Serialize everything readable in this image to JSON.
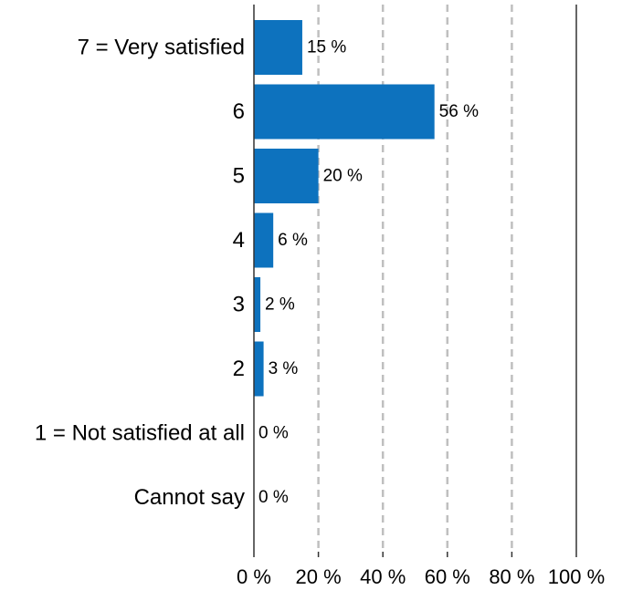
{
  "chart_data": {
    "type": "bar",
    "orientation": "horizontal",
    "categories": [
      "7 = Very satisfied",
      "6",
      "5",
      "4",
      "3",
      "2",
      "1 = Not satisfied at all",
      "Cannot say"
    ],
    "values": [
      15,
      56,
      20,
      6,
      2,
      3,
      0,
      0
    ],
    "data_labels": [
      "15 %",
      "56 %",
      "20 %",
      "6 %",
      "2 %",
      "3 %",
      "0 %",
      "0 %"
    ],
    "xlim": [
      0,
      100
    ],
    "x_ticks": [
      0,
      20,
      40,
      60,
      80,
      100
    ],
    "x_tick_labels": [
      "0 %",
      "20 %",
      "40 %",
      "60 %",
      "80 %",
      "100 %"
    ],
    "grid": "vertical dashed",
    "legend": "none",
    "colors": {
      "bar": "#0d72be",
      "grid": "#bfbfbf",
      "axis": "#333333"
    }
  }
}
